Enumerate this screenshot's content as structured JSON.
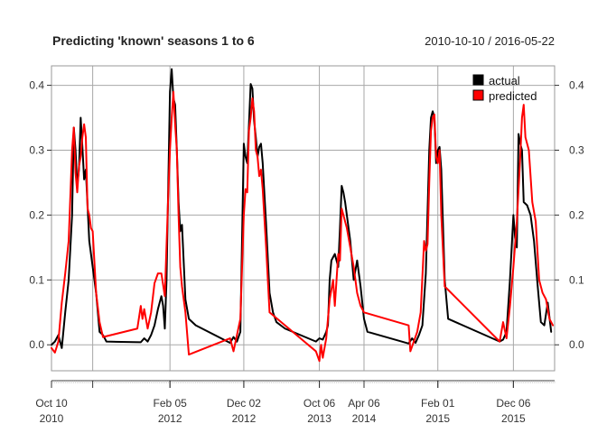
{
  "chart_data": {
    "type": "line",
    "title": "Predicting 'known' seasons 1 to 6",
    "date_range": "2010-10-10 / 2016-05-22",
    "xlabel": "",
    "ylabel": "",
    "xlim": [
      "2010-10-10",
      "2016-05-22"
    ],
    "ylim": [
      -0.04,
      0.43
    ],
    "y_ticks": [
      0.0,
      0.1,
      0.2,
      0.3,
      0.4
    ],
    "y_tick_labels": [
      "0.0",
      "0.1",
      "0.2",
      "0.3",
      "0.4"
    ],
    "grid": true,
    "legend_position": "top-right",
    "x_ticks": [
      {
        "date": "2010-10-10",
        "line1": "Oct 10",
        "line2": "2010"
      },
      {
        "date": "2012-02-05",
        "line1": "Feb 05",
        "line2": "2012"
      },
      {
        "date": "2012-12-02",
        "line1": "Dec 02",
        "line2": "2012"
      },
      {
        "date": "2013-10-06",
        "line1": "Oct 06",
        "line2": "2013"
      },
      {
        "date": "2014-04-06",
        "line1": "Apr 06",
        "line2": "2014"
      },
      {
        "date": "2015-02-01",
        "line1": "Feb 01",
        "line2": "2015"
      },
      {
        "date": "2015-12-06",
        "line1": "Dec 06",
        "line2": "2015"
      }
    ],
    "vertical_gridlines": [
      "2011-03-27",
      "2012-02-05",
      "2012-12-02",
      "2013-10-06",
      "2014-04-06",
      "2015-02-01",
      "2015-12-06"
    ],
    "series": [
      {
        "name": "actual",
        "color": "#000000",
        "points": [
          [
            "2010-10-10",
            0.0
          ],
          [
            "2010-10-24",
            0.005
          ],
          [
            "2010-11-07",
            0.015
          ],
          [
            "2010-11-21",
            -0.005
          ],
          [
            "2010-12-05",
            0.05
          ],
          [
            "2010-12-19",
            0.1
          ],
          [
            "2011-01-02",
            0.2
          ],
          [
            "2011-01-09",
            0.335
          ],
          [
            "2011-01-16",
            0.3
          ],
          [
            "2011-01-23",
            0.245
          ],
          [
            "2011-01-30",
            0.27
          ],
          [
            "2011-02-06",
            0.35
          ],
          [
            "2011-02-13",
            0.305
          ],
          [
            "2011-02-20",
            0.255
          ],
          [
            "2011-02-27",
            0.27
          ],
          [
            "2011-03-13",
            0.16
          ],
          [
            "2011-03-27",
            0.12
          ],
          [
            "2011-04-10",
            0.08
          ],
          [
            "2011-04-24",
            0.02
          ],
          [
            "2011-05-08",
            0.015
          ],
          [
            "2011-05-22",
            0.005
          ],
          [
            "2011-10-09",
            0.004
          ],
          [
            "2011-10-23",
            0.01
          ],
          [
            "2011-11-06",
            0.005
          ],
          [
            "2011-11-20",
            0.015
          ],
          [
            "2011-12-04",
            0.03
          ],
          [
            "2011-12-18",
            0.055
          ],
          [
            "2012-01-01",
            0.075
          ],
          [
            "2012-01-08",
            0.06
          ],
          [
            "2012-01-15",
            0.025
          ],
          [
            "2012-01-22",
            0.1
          ],
          [
            "2012-02-05",
            0.39
          ],
          [
            "2012-02-12",
            0.425
          ],
          [
            "2012-02-19",
            0.38
          ],
          [
            "2012-02-26",
            0.37
          ],
          [
            "2012-03-04",
            0.3
          ],
          [
            "2012-03-11",
            0.22
          ],
          [
            "2012-03-18",
            0.175
          ],
          [
            "2012-03-25",
            0.185
          ],
          [
            "2012-04-08",
            0.07
          ],
          [
            "2012-04-22",
            0.04
          ],
          [
            "2012-05-20",
            0.03
          ],
          [
            "2012-10-07",
            0.003
          ],
          [
            "2012-10-21",
            0.012
          ],
          [
            "2012-11-04",
            0.005
          ],
          [
            "2012-11-18",
            0.02
          ],
          [
            "2012-12-02",
            0.31
          ],
          [
            "2012-12-09",
            0.29
          ],
          [
            "2012-12-16",
            0.28
          ],
          [
            "2012-12-23",
            0.34
          ],
          [
            "2012-12-30",
            0.402
          ],
          [
            "2013-01-06",
            0.395
          ],
          [
            "2013-01-13",
            0.345
          ],
          [
            "2013-01-20",
            0.32
          ],
          [
            "2013-01-27",
            0.29
          ],
          [
            "2013-02-03",
            0.305
          ],
          [
            "2013-02-10",
            0.31
          ],
          [
            "2013-02-17",
            0.28
          ],
          [
            "2013-03-03",
            0.185
          ],
          [
            "2013-03-17",
            0.08
          ],
          [
            "2013-03-31",
            0.05
          ],
          [
            "2013-04-14",
            0.035
          ],
          [
            "2013-05-19",
            0.025
          ],
          [
            "2013-09-22",
            0.005
          ],
          [
            "2013-10-06",
            0.01
          ],
          [
            "2013-10-20",
            0.008
          ],
          [
            "2013-11-03",
            0.02
          ],
          [
            "2013-11-10",
            0.03
          ],
          [
            "2013-11-17",
            0.1
          ],
          [
            "2013-11-24",
            0.13
          ],
          [
            "2013-12-01",
            0.135
          ],
          [
            "2013-12-08",
            0.14
          ],
          [
            "2013-12-15",
            0.13
          ],
          [
            "2013-12-22",
            0.12
          ],
          [
            "2013-12-29",
            0.18
          ],
          [
            "2014-01-05",
            0.245
          ],
          [
            "2014-01-12",
            0.235
          ],
          [
            "2014-01-19",
            0.22
          ],
          [
            "2014-01-26",
            0.2
          ],
          [
            "2014-02-09",
            0.16
          ],
          [
            "2014-02-23",
            0.1
          ],
          [
            "2014-03-09",
            0.13
          ],
          [
            "2014-03-23",
            0.09
          ],
          [
            "2014-04-06",
            0.04
          ],
          [
            "2014-04-20",
            0.02
          ],
          [
            "2014-10-05",
            0.002
          ],
          [
            "2014-10-19",
            0.01
          ],
          [
            "2014-11-02",
            0.003
          ],
          [
            "2014-11-16",
            0.015
          ],
          [
            "2014-11-30",
            0.03
          ],
          [
            "2014-12-14",
            0.11
          ],
          [
            "2014-12-28",
            0.3
          ],
          [
            "2015-01-04",
            0.35
          ],
          [
            "2015-01-11",
            0.36
          ],
          [
            "2015-01-18",
            0.35
          ],
          [
            "2015-01-25",
            0.28
          ],
          [
            "2015-02-01",
            0.3
          ],
          [
            "2015-02-08",
            0.305
          ],
          [
            "2015-02-15",
            0.27
          ],
          [
            "2015-03-01",
            0.1
          ],
          [
            "2015-03-15",
            0.04
          ],
          [
            "2015-10-11",
            0.005
          ],
          [
            "2015-10-25",
            0.008
          ],
          [
            "2015-11-08",
            0.02
          ],
          [
            "2015-11-22",
            0.1
          ],
          [
            "2015-12-06",
            0.2
          ],
          [
            "2015-12-13",
            0.165
          ],
          [
            "2015-12-20",
            0.15
          ],
          [
            "2015-12-27",
            0.325
          ],
          [
            "2016-01-03",
            0.31
          ],
          [
            "2016-01-10",
            0.3
          ],
          [
            "2016-01-17",
            0.22
          ],
          [
            "2016-01-31",
            0.215
          ],
          [
            "2016-02-14",
            0.2
          ],
          [
            "2016-02-28",
            0.16
          ],
          [
            "2016-03-13",
            0.095
          ],
          [
            "2016-03-27",
            0.035
          ],
          [
            "2016-04-10",
            0.03
          ],
          [
            "2016-04-24",
            0.065
          ],
          [
            "2016-05-08",
            0.02
          ]
        ]
      },
      {
        "name": "predicted",
        "color": "#ff0000",
        "points": [
          [
            "2010-10-10",
            -0.005
          ],
          [
            "2010-10-24",
            -0.012
          ],
          [
            "2010-11-07",
            0.005
          ],
          [
            "2010-11-21",
            0.065
          ],
          [
            "2010-12-05",
            0.11
          ],
          [
            "2010-12-19",
            0.16
          ],
          [
            "2011-01-02",
            0.3
          ],
          [
            "2011-01-09",
            0.335
          ],
          [
            "2011-01-16",
            0.265
          ],
          [
            "2011-01-23",
            0.235
          ],
          [
            "2011-01-30",
            0.275
          ],
          [
            "2011-02-06",
            0.29
          ],
          [
            "2011-02-13",
            0.32
          ],
          [
            "2011-02-20",
            0.34
          ],
          [
            "2011-02-27",
            0.32
          ],
          [
            "2011-03-06",
            0.21
          ],
          [
            "2011-03-13",
            0.2
          ],
          [
            "2011-03-20",
            0.18
          ],
          [
            "2011-03-27",
            0.175
          ],
          [
            "2011-04-10",
            0.08
          ],
          [
            "2011-04-24",
            0.035
          ],
          [
            "2011-05-08",
            0.012
          ],
          [
            "2011-09-25",
            0.025
          ],
          [
            "2011-10-09",
            0.06
          ],
          [
            "2011-10-16",
            0.04
          ],
          [
            "2011-10-23",
            0.055
          ],
          [
            "2011-11-06",
            0.025
          ],
          [
            "2011-11-20",
            0.05
          ],
          [
            "2011-12-04",
            0.095
          ],
          [
            "2011-12-18",
            0.11
          ],
          [
            "2012-01-01",
            0.11
          ],
          [
            "2012-01-15",
            0.075
          ],
          [
            "2012-01-29",
            0.23
          ],
          [
            "2012-02-05",
            0.3
          ],
          [
            "2012-02-12",
            0.35
          ],
          [
            "2012-02-19",
            0.39
          ],
          [
            "2012-02-26",
            0.34
          ],
          [
            "2012-03-04",
            0.3
          ],
          [
            "2012-03-11",
            0.2
          ],
          [
            "2012-03-18",
            0.12
          ],
          [
            "2012-03-25",
            0.09
          ],
          [
            "2012-04-08",
            0.05
          ],
          [
            "2012-04-22",
            -0.015
          ],
          [
            "2012-10-07",
            0.01
          ],
          [
            "2012-10-21",
            -0.01
          ],
          [
            "2012-11-04",
            0.015
          ],
          [
            "2012-11-18",
            0.04
          ],
          [
            "2012-12-02",
            0.2
          ],
          [
            "2012-12-09",
            0.24
          ],
          [
            "2012-12-16",
            0.235
          ],
          [
            "2012-12-23",
            0.33
          ],
          [
            "2012-12-30",
            0.35
          ],
          [
            "2013-01-06",
            0.38
          ],
          [
            "2013-01-13",
            0.36
          ],
          [
            "2013-01-20",
            0.3
          ],
          [
            "2013-01-27",
            0.29
          ],
          [
            "2013-02-03",
            0.26
          ],
          [
            "2013-02-10",
            0.27
          ],
          [
            "2013-02-17",
            0.24
          ],
          [
            "2013-03-03",
            0.15
          ],
          [
            "2013-03-17",
            0.05
          ],
          [
            "2013-09-22",
            -0.01
          ],
          [
            "2013-10-06",
            -0.025
          ],
          [
            "2013-10-13",
            0.0
          ],
          [
            "2013-10-20",
            -0.02
          ],
          [
            "2013-11-03",
            0.01
          ],
          [
            "2013-11-17",
            0.07
          ],
          [
            "2013-12-01",
            0.1
          ],
          [
            "2013-12-08",
            0.06
          ],
          [
            "2013-12-15",
            0.1
          ],
          [
            "2013-12-22",
            0.14
          ],
          [
            "2013-12-29",
            0.13
          ],
          [
            "2014-01-05",
            0.21
          ],
          [
            "2014-01-12",
            0.2
          ],
          [
            "2014-01-19",
            0.19
          ],
          [
            "2014-01-26",
            0.18
          ],
          [
            "2014-02-09",
            0.15
          ],
          [
            "2014-02-23",
            0.12
          ],
          [
            "2014-03-09",
            0.08
          ],
          [
            "2014-03-23",
            0.06
          ],
          [
            "2014-04-06",
            0.05
          ],
          [
            "2014-10-05",
            0.03
          ],
          [
            "2014-10-12",
            -0.01
          ],
          [
            "2014-10-26",
            0.005
          ],
          [
            "2014-11-09",
            0.02
          ],
          [
            "2014-11-23",
            0.05
          ],
          [
            "2014-12-07",
            0.16
          ],
          [
            "2014-12-14",
            0.145
          ],
          [
            "2014-12-21",
            0.155
          ],
          [
            "2014-12-28",
            0.25
          ],
          [
            "2015-01-04",
            0.33
          ],
          [
            "2015-01-11",
            0.35
          ],
          [
            "2015-01-18",
            0.355
          ],
          [
            "2015-01-25",
            0.29
          ],
          [
            "2015-02-01",
            0.28
          ],
          [
            "2015-02-08",
            0.3
          ],
          [
            "2015-02-15",
            0.2
          ],
          [
            "2015-03-01",
            0.09
          ],
          [
            "2015-10-11",
            0.005
          ],
          [
            "2015-10-25",
            0.035
          ],
          [
            "2015-11-08",
            0.01
          ],
          [
            "2015-11-22",
            0.06
          ],
          [
            "2015-12-06",
            0.12
          ],
          [
            "2015-12-20",
            0.19
          ],
          [
            "2016-01-03",
            0.29
          ],
          [
            "2016-01-10",
            0.35
          ],
          [
            "2016-01-17",
            0.37
          ],
          [
            "2016-01-24",
            0.32
          ],
          [
            "2016-02-07",
            0.3
          ],
          [
            "2016-02-21",
            0.22
          ],
          [
            "2016-03-06",
            0.19
          ],
          [
            "2016-03-20",
            0.1
          ],
          [
            "2016-04-03",
            0.08
          ],
          [
            "2016-04-17",
            0.07
          ],
          [
            "2016-05-01",
            0.04
          ],
          [
            "2016-05-15",
            0.03
          ]
        ]
      }
    ]
  }
}
